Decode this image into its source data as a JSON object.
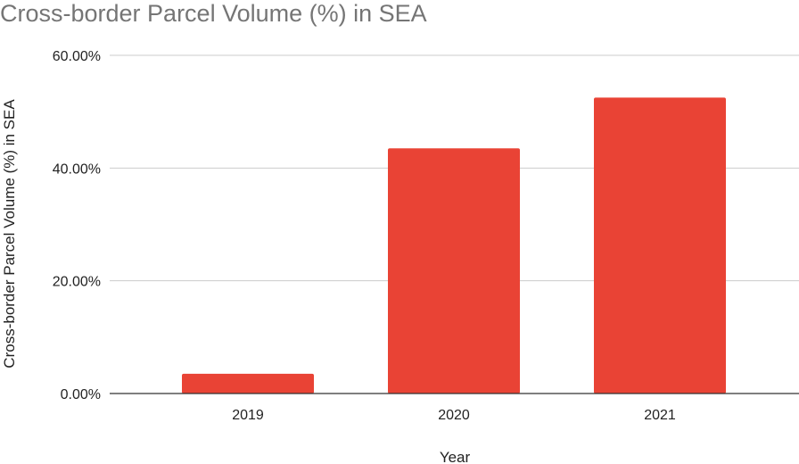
{
  "colors": {
    "bar": "#e94335",
    "grid": "#cccccc",
    "baseline": "#333333",
    "title": "#757575",
    "text": "#222222"
  },
  "chart_data": {
    "type": "bar",
    "title": "Cross-border Parcel Volume (%) in SEA",
    "xlabel": "Year",
    "ylabel": "Cross-border Parcel Volume (%) in SEA",
    "categories": [
      "2019",
      "2020",
      "2021"
    ],
    "values": [
      3.5,
      43.5,
      52.5
    ],
    "ylim": [
      0,
      60
    ],
    "yticks": [
      "0.00%",
      "20.00%",
      "40.00%",
      "60.00%"
    ],
    "ytick_values": [
      0,
      20,
      40,
      60
    ],
    "grid": true,
    "legend": "none"
  }
}
